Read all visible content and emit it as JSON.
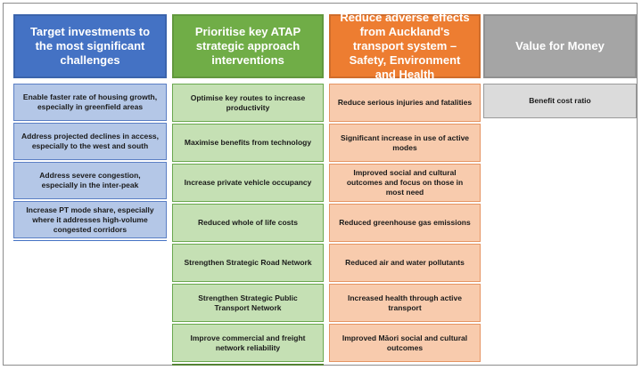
{
  "columns": [
    {
      "header": "Target investments to the most significant challenges",
      "color": "#4472c4",
      "items": [
        "Enable faster rate of housing growth, especially in greenfield areas",
        "Address projected declines in access, especially to the west and south",
        "Address severe congestion, especially in the inter-peak",
        "Increase PT mode share, especially where it addresses high-volume congested corridors"
      ]
    },
    {
      "header": "Prioritise key ATAP strategic approach interventions",
      "color": "#70ad47",
      "items": [
        "Optimise key routes to increase productivity",
        "Maximise benefits from technology",
        "Increase private vehicle occupancy",
        "Reduced whole of life costs",
        "Strengthen Strategic Road Network",
        "Strengthen Strategic Public Transport Network",
        "Improve commercial and freight network reliability"
      ]
    },
    {
      "header": "Reduce adverse effects from Auckland's transport system – Safety, Environment and Health",
      "color": "#ed7d31",
      "items": [
        "Reduce serious injuries and fatalities",
        "Significant increase in use of active modes",
        "Improved social and cultural outcomes and focus on those in most need",
        "Reduced greenhouse gas emissions",
        "Reduced air and water pollutants",
        "Increased health through active transport",
        "Improved Māori social and cultural outcomes"
      ]
    },
    {
      "header": "Value for Money",
      "color": "#a5a5a5",
      "items": [
        "Benefit cost ratio"
      ]
    }
  ]
}
